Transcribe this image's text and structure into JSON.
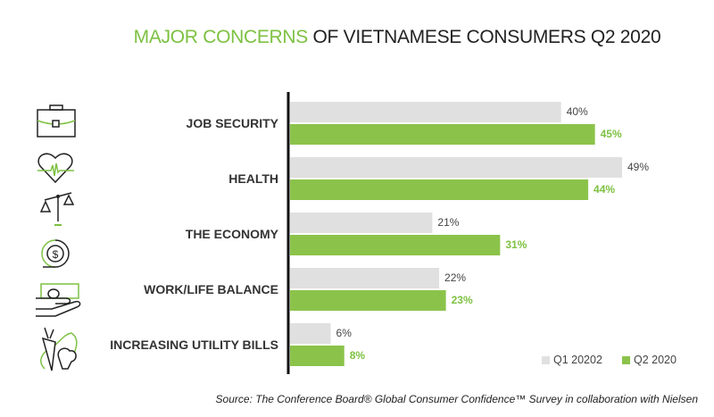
{
  "title": {
    "highlight": "MAJOR CONCERNS",
    "rest": " OF VIETNAMESE CONSUMERS Q2 2020"
  },
  "chart_data": {
    "type": "bar",
    "orientation": "horizontal",
    "title": "MAJOR CONCERNS OF VIETNAMESE CONSUMERS Q2 2020",
    "categories": [
      "JOB SECURITY",
      "HEALTH",
      "THE ECONOMY",
      "WORK/LIFE BALANCE",
      "INCREASING UTILITY BILLS"
    ],
    "series": [
      {
        "name": "Q1 20202",
        "values": [
          40,
          49,
          21,
          22,
          6
        ],
        "labels": [
          "40%",
          "49%",
          "21%",
          "22%",
          "6%"
        ],
        "color": "#e0e0e0"
      },
      {
        "name": "Q2 2020",
        "values": [
          45,
          44,
          31,
          23,
          8
        ],
        "labels": [
          "45%",
          "44%",
          "31%",
          "23%",
          "8%"
        ],
        "color": "#8bc34a"
      }
    ],
    "legend": "bottom-right",
    "grid": false
  },
  "icons": [
    "briefcase-icon",
    "heart-pulse-icon",
    "scale-icon",
    "dollar-cycle-icon",
    "hand-money-icon",
    "vegetables-icon"
  ],
  "source": "Source: The Conference Board® Global Consumer Confidence™ Survey in collaboration with Nielsen"
}
